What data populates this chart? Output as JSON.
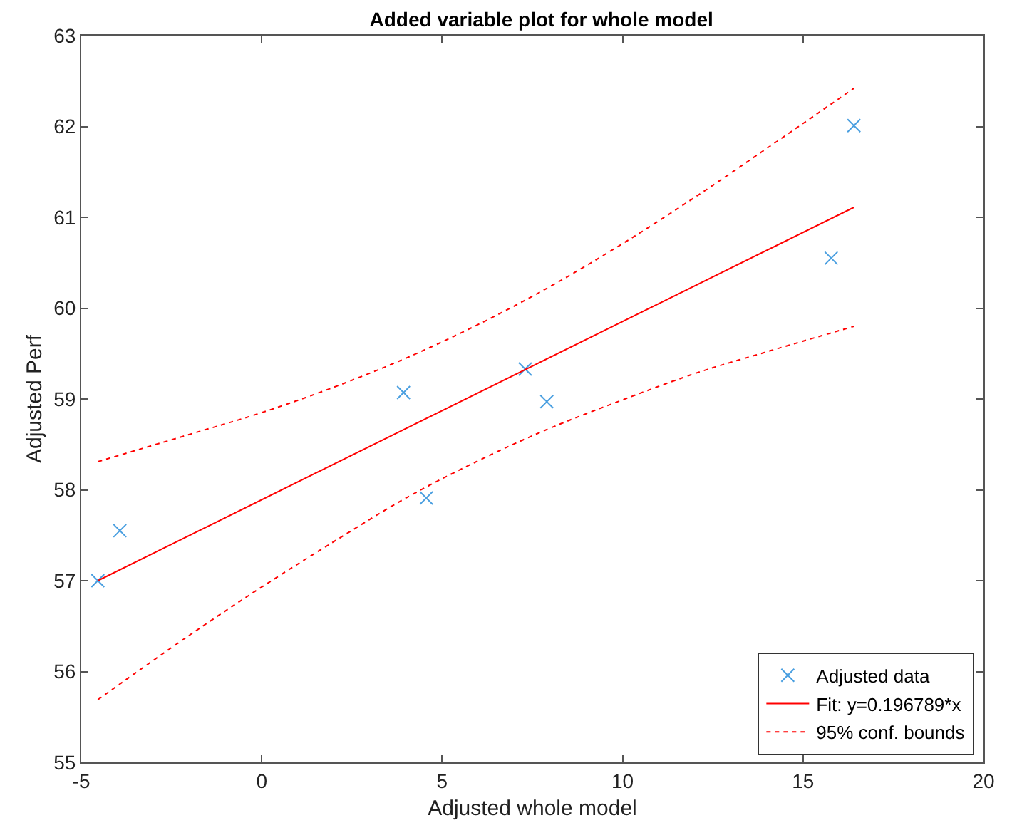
{
  "chart_data": {
    "type": "scatter",
    "title": "Added variable plot for whole model",
    "xlabel": "Adjusted whole model",
    "ylabel": "Adjusted Perf",
    "xlim": [
      -5,
      20
    ],
    "xticks": [
      -5,
      0,
      5,
      10,
      15,
      20
    ],
    "ylim": [
      55,
      63
    ],
    "yticks": [
      55,
      56,
      57,
      58,
      59,
      60,
      61,
      62,
      63
    ],
    "legend": "bottom right",
    "series": [
      {
        "name": "Adjusted data",
        "marker": "cross",
        "color": "#4a9fe0",
        "x": [
          -4.54,
          -3.93,
          3.93,
          4.56,
          7.3,
          7.9,
          15.78,
          16.41
        ],
        "values": [
          57.0,
          57.55,
          59.07,
          57.91,
          59.33,
          58.97,
          60.55,
          62.01
        ]
      },
      {
        "name": "Fit: y=0.196789*x",
        "type": "line",
        "marker": "none",
        "line_style": "solid",
        "color": "#ff0000",
        "x": [
          -4.54,
          16.41
        ],
        "values": [
          57.0,
          61.11
        ]
      },
      {
        "name": "95% conf. bounds",
        "type": "line",
        "marker": "none",
        "line_style": "dotted",
        "color": "#ff0000",
        "x": [
          -4.54,
          -2,
          0,
          2,
          4,
          6,
          8,
          10,
          12,
          14,
          16.41
        ],
        "values": [
          58.31,
          58.61,
          58.85,
          59.13,
          59.45,
          59.82,
          60.24,
          60.71,
          61.22,
          61.76,
          62.42
        ]
      },
      {
        "type": "line",
        "marker": "none",
        "line_style": "dotted",
        "color": "#ff0000",
        "x": [
          -4.54,
          -2,
          0,
          2,
          4,
          6,
          8,
          10,
          12,
          14,
          16.41
        ],
        "values": [
          55.69,
          56.4,
          56.93,
          57.43,
          57.91,
          58.32,
          58.68,
          58.99,
          59.28,
          59.52,
          59.8
        ]
      }
    ]
  }
}
